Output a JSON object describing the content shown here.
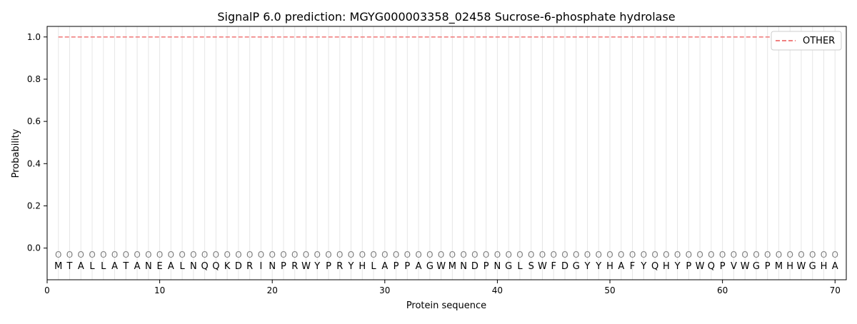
{
  "chart_data": {
    "type": "line",
    "title": "SignalP 6.0 prediction: MGYG000003358_02458 Sucrose-6-phosphate hydrolase",
    "xlabel": "Protein sequence",
    "ylabel": "Probability",
    "xlim": [
      0,
      71
    ],
    "ylim": [
      -0.15,
      1.05
    ],
    "x_ticks": [
      0,
      10,
      20,
      30,
      40,
      50,
      60,
      70
    ],
    "y_ticks": [
      0.0,
      0.2,
      0.4,
      0.6,
      0.8,
      1.0
    ],
    "y_tick_labels": [
      "0.0",
      "0.2",
      "0.4",
      "0.6",
      "0.8",
      "1.0"
    ],
    "grid": "vertical lines at each residue",
    "legend_position": "top-right",
    "series": [
      {
        "name": "OTHER",
        "color": "#f08080",
        "style": "dashed",
        "x_start": 1,
        "x_end": 70,
        "values": [
          1.0
        ]
      }
    ],
    "sequence": [
      "M",
      "T",
      "A",
      "L",
      "L",
      "A",
      "T",
      "A",
      "N",
      "E",
      "A",
      "L",
      "N",
      "Q",
      "Q",
      "K",
      "D",
      "R",
      "I",
      "N",
      "P",
      "R",
      "W",
      "Y",
      "P",
      "R",
      "Y",
      "H",
      "L",
      "A",
      "P",
      "P",
      "A",
      "G",
      "W",
      "M",
      "N",
      "D",
      "P",
      "N",
      "G",
      "L",
      "S",
      "W",
      "F",
      "D",
      "G",
      "Y",
      "Y",
      "H",
      "A",
      "F",
      "Y",
      "Q",
      "H",
      "Y",
      "P",
      "W",
      "Q",
      "P",
      "V",
      "W",
      "G",
      "P",
      "M",
      "H",
      "W",
      "G",
      "H",
      "A"
    ],
    "region_labels": [
      "O",
      "O",
      "O",
      "O",
      "O",
      "O",
      "O",
      "O",
      "O",
      "O",
      "O",
      "O",
      "O",
      "O",
      "O",
      "O",
      "O",
      "O",
      "O",
      "O",
      "O",
      "O",
      "O",
      "O",
      "O",
      "O",
      "O",
      "O",
      "O",
      "O",
      "O",
      "O",
      "O",
      "O",
      "O",
      "O",
      "O",
      "O",
      "O",
      "O",
      "O",
      "O",
      "O",
      "O",
      "O",
      "O",
      "O",
      "O",
      "O",
      "O",
      "O",
      "O",
      "O",
      "O",
      "O",
      "O",
      "O",
      "O",
      "O",
      "O",
      "O",
      "O",
      "O",
      "O",
      "O",
      "O",
      "O",
      "O",
      "O",
      "O"
    ]
  }
}
